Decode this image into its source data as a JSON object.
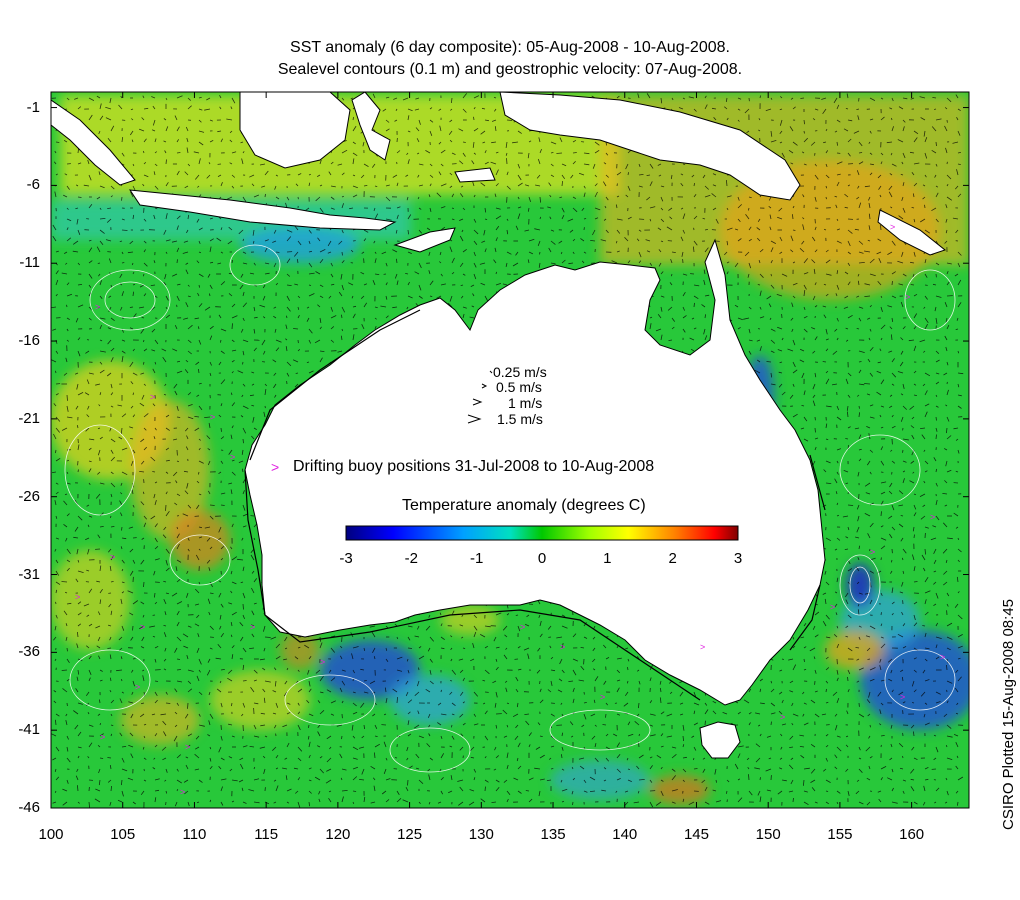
{
  "title": {
    "line1": "SST anomaly (6 day composite): 05-Aug-2008 - 10-Aug-2008.",
    "line2": "Sealevel contours (0.1 m) and geostrophic velocity: 07-Aug-2008."
  },
  "axes": {
    "x_ticks": [
      "100",
      "105",
      "110",
      "115",
      "120",
      "125",
      "130",
      "135",
      "140",
      "145",
      "150",
      "155",
      "160"
    ],
    "y_ticks": [
      "-1",
      "-6",
      "-11",
      "-16",
      "-21",
      "-26",
      "-31",
      "-36",
      "-41",
      "-46"
    ],
    "x_range": [
      100,
      164
    ],
    "y_range": [
      -46,
      0
    ]
  },
  "legend": {
    "velocity_scale": [
      "0.25 m/s",
      "0.5 m/s",
      "1 m/s",
      "1.5 m/s"
    ],
    "buoy_marker": ">",
    "buoy_label": "Drifting buoy positions 31-Jul-2008 to 10-Aug-2008"
  },
  "colorbar": {
    "title": "Temperature anomaly (degrees C)",
    "ticks": [
      "-3",
      "-2",
      "-1",
      "0",
      "1",
      "2",
      "3"
    ],
    "range": [
      -3,
      3
    ],
    "colors": [
      "#00007f",
      "#0000ff",
      "#0080ff",
      "#00ffff",
      "#00c800",
      "#80ff00",
      "#ffff00",
      "#ff8000",
      "#ff0000",
      "#800000"
    ]
  },
  "credit": "CSIRO Plotted 15-Aug-2008 08:45",
  "colors": {
    "ocean_neutral": "#22c832",
    "land": "#ffffff",
    "buoy": "#e020e0"
  }
}
